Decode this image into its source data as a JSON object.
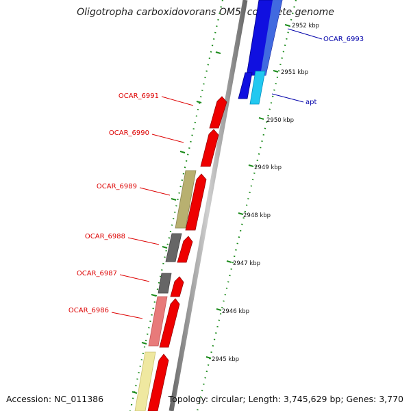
{
  "title": "Oligotropha carboxidovorans OM5, complete genome",
  "accession": "Accession: NC_011386",
  "summary": "Topology: circular; Length: 3,745,629 bp; Genes: 3,770",
  "ticks": [
    "2952 kbp",
    "2951 kbp",
    "2950 kbp",
    "2949 kbp",
    "2948 kbp",
    "2947 kbp",
    "2946 kbp",
    "2945 kbp"
  ],
  "colors": {
    "forward_cds": "#1010e0",
    "forward_cds_light": "#22c8f0",
    "reverse_cds": "#ee0000",
    "reverse_label": "#dd0000",
    "forward_label": "#0000aa",
    "tick_green": "#1a8a1a",
    "backbone": "#9a9a9a"
  },
  "genes": [
    {
      "name": "OCAR_6993",
      "strand": "forward",
      "color": "#1010e0"
    },
    {
      "name": "apt",
      "strand": "forward",
      "color": "#22c8f0"
    },
    {
      "name": "OCAR_6991",
      "strand": "reverse",
      "color": "#ee0000"
    },
    {
      "name": "OCAR_6990",
      "strand": "reverse",
      "color": "#ee0000"
    },
    {
      "name": "OCAR_6989",
      "strand": "reverse",
      "color": "#ee0000"
    },
    {
      "name": "OCAR_6988",
      "strand": "reverse",
      "color": "#ee0000"
    },
    {
      "name": "OCAR_6987",
      "strand": "reverse",
      "color": "#ee0000"
    },
    {
      "name": "OCAR_6986",
      "strand": "reverse",
      "color": "#ee0000"
    }
  ],
  "cog_tracks": [
    {
      "color": "#b8b070"
    },
    {
      "color": "#666666"
    },
    {
      "color": "#666666"
    },
    {
      "color": "#e87a7a"
    },
    {
      "color": "#efe8a0"
    }
  ]
}
